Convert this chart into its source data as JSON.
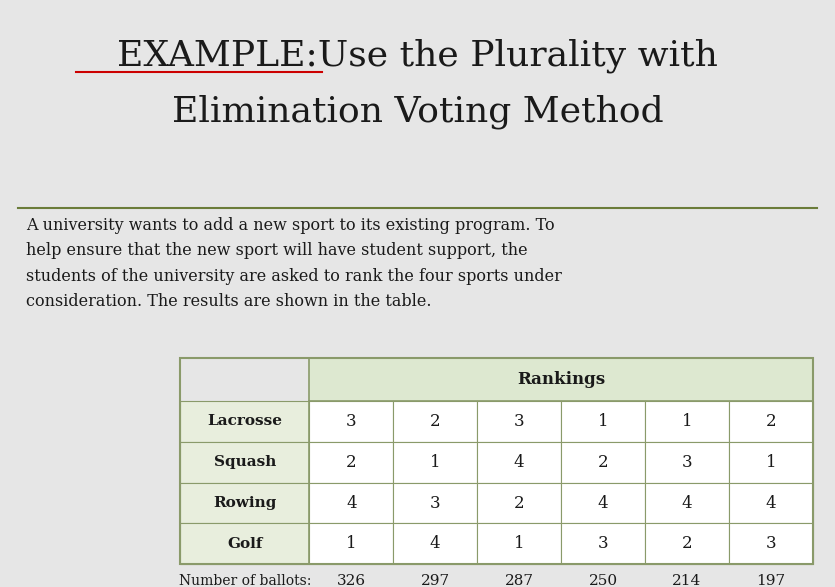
{
  "title_line1": "EXAMPLE:Use the Plurality with",
  "title_line2": "Elimination Voting Method",
  "body_text": "A university wants to add a new sport to its existing program. To\nhelp ensure that the new sport will have student support, the\nstudents of the university are asked to rank the four sports under\nconsideration. The results are shown in the table.",
  "rankings_header": "Rankings",
  "row_labels": [
    "Lacrosse",
    "Squash",
    "Rowing",
    "Golf"
  ],
  "table_data": [
    [
      3,
      2,
      3,
      1,
      1,
      2
    ],
    [
      2,
      1,
      4,
      2,
      3,
      1
    ],
    [
      4,
      3,
      2,
      4,
      4,
      4
    ],
    [
      1,
      4,
      1,
      3,
      2,
      3
    ]
  ],
  "ballot_label": "Number of ballots:",
  "ballot_values": [
    326,
    297,
    287,
    250,
    214,
    197
  ],
  "bg_color": "#e6e6e6",
  "title_color": "#1a1a1a",
  "header_bg": "#dde8d0",
  "row_label_bg": "#e8eedd",
  "cell_bg": "#ffffff",
  "border_color": "#8a9a6a",
  "text_color": "#1a1a1a",
  "underline_color": "#cc0000",
  "separator_color": "#6b7c3a"
}
